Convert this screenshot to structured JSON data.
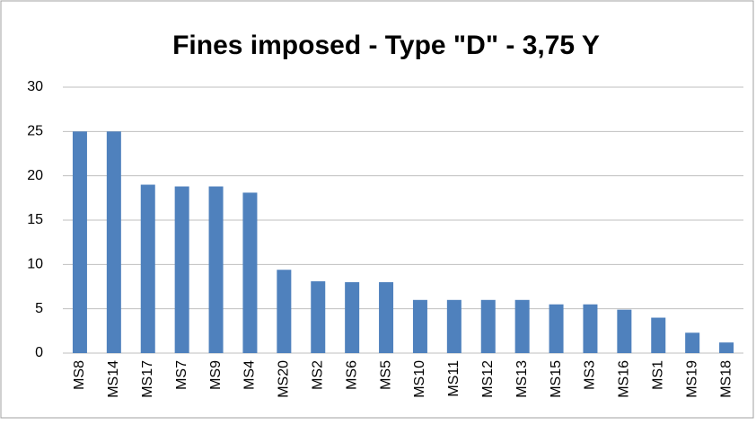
{
  "chart_data": {
    "type": "bar",
    "title": "Fines imposed - Type \"D\" - 3,75 Y",
    "categories": [
      "MS8",
      "MS14",
      "MS17",
      "MS7",
      "MS9",
      "MS4",
      "MS20",
      "MS2",
      "MS6",
      "MS5",
      "MS10",
      "MS11",
      "MS12",
      "MS13",
      "MS15",
      "MS3",
      "MS16",
      "MS1",
      "MS19",
      "MS18"
    ],
    "values": [
      25,
      25,
      19,
      18.8,
      18.8,
      18.1,
      9.4,
      8.1,
      8,
      8,
      6,
      6,
      6,
      6,
      5.5,
      5.5,
      4.9,
      4,
      2.3,
      1.2
    ],
    "color": "#4f81bd",
    "ylim": [
      0,
      30
    ],
    "yticks": [
      0,
      5,
      10,
      15,
      20,
      25,
      30
    ],
    "grid": true
  }
}
